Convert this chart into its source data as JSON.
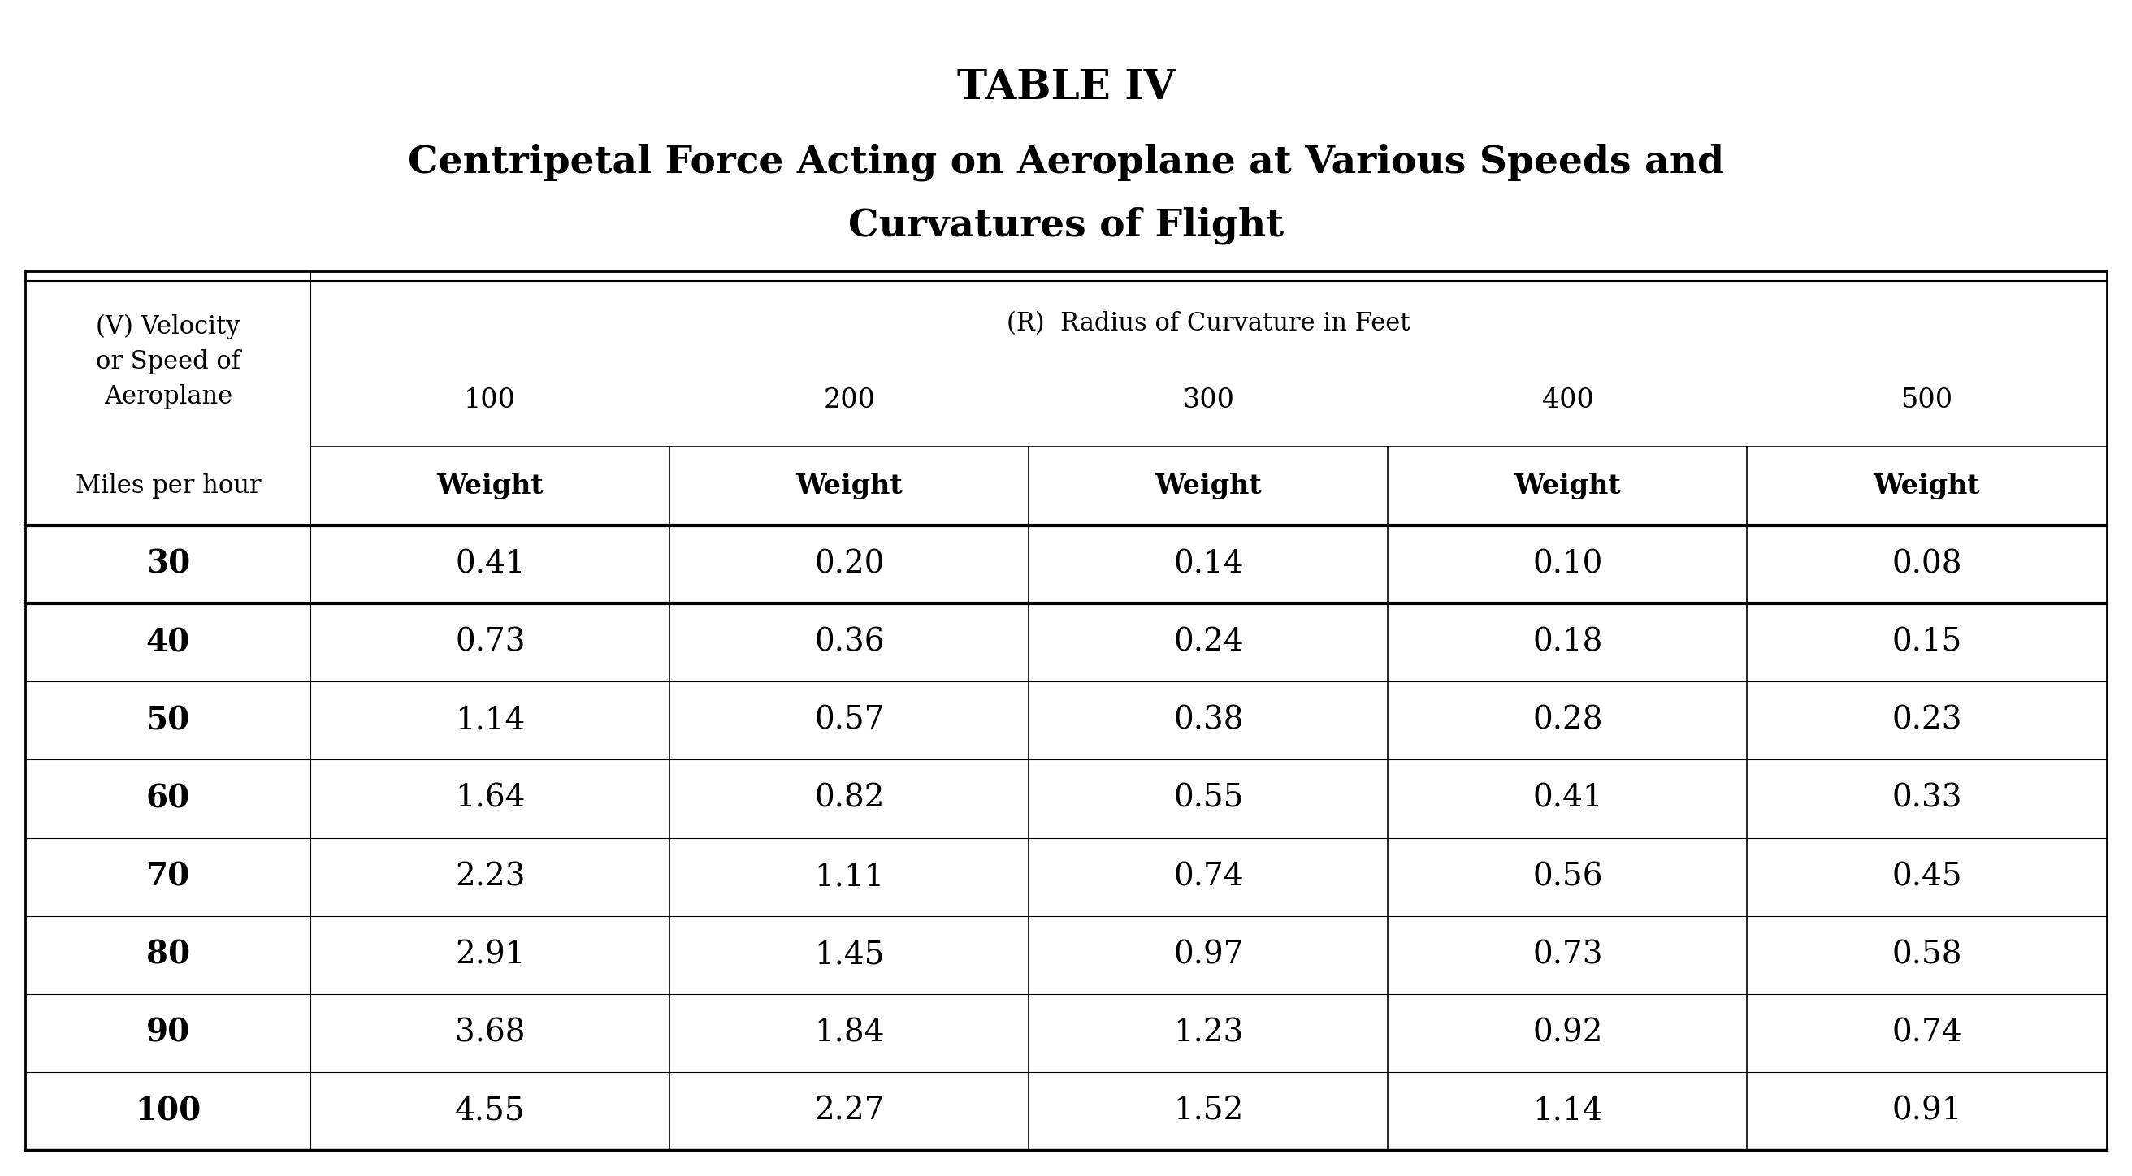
{
  "title": "TABLE IV",
  "subtitle_line1": "Centripetal Force Acting on Aeroplane at Various Speeds and",
  "subtitle_line2": "Curvatures of Flight",
  "col_header_top": "(R)  Radius of Curvature in Feet",
  "col_header_radii": [
    "100",
    "200",
    "300",
    "400",
    "500"
  ],
  "row_header_top": "(V) Velocity\nor Speed of\nAeroplane",
  "row_header_sub": "Miles per hour",
  "col_sub_label": "Weight",
  "speeds": [
    "30",
    "40",
    "50",
    "60",
    "70",
    "80",
    "90",
    "100"
  ],
  "data": [
    [
      "0.41",
      "0.20",
      "0.14",
      "0.10",
      "0.08"
    ],
    [
      "0.73",
      "0.36",
      "0.24",
      "0.18",
      "0.15"
    ],
    [
      "1.14",
      "0.57",
      "0.38",
      "0.28",
      "0.23"
    ],
    [
      "1.64",
      "0.82",
      "0.55",
      "0.41",
      "0.33"
    ],
    [
      "2.23",
      "1.11",
      "0.74",
      "0.56",
      "0.45"
    ],
    [
      "2.91",
      "1.45",
      "0.97",
      "0.73",
      "0.58"
    ],
    [
      "3.68",
      "1.84",
      "1.23",
      "0.92",
      "0.74"
    ],
    [
      "4.55",
      "2.27",
      "1.52",
      "1.14",
      "0.91"
    ]
  ],
  "bg_color": "#ffffff",
  "text_color": "#000000",
  "title_fontsize": 36,
  "subtitle_fontsize": 34,
  "header_fontsize": 22,
  "data_fontsize": 28,
  "weight_fontsize": 24,
  "miles_fontsize": 22
}
